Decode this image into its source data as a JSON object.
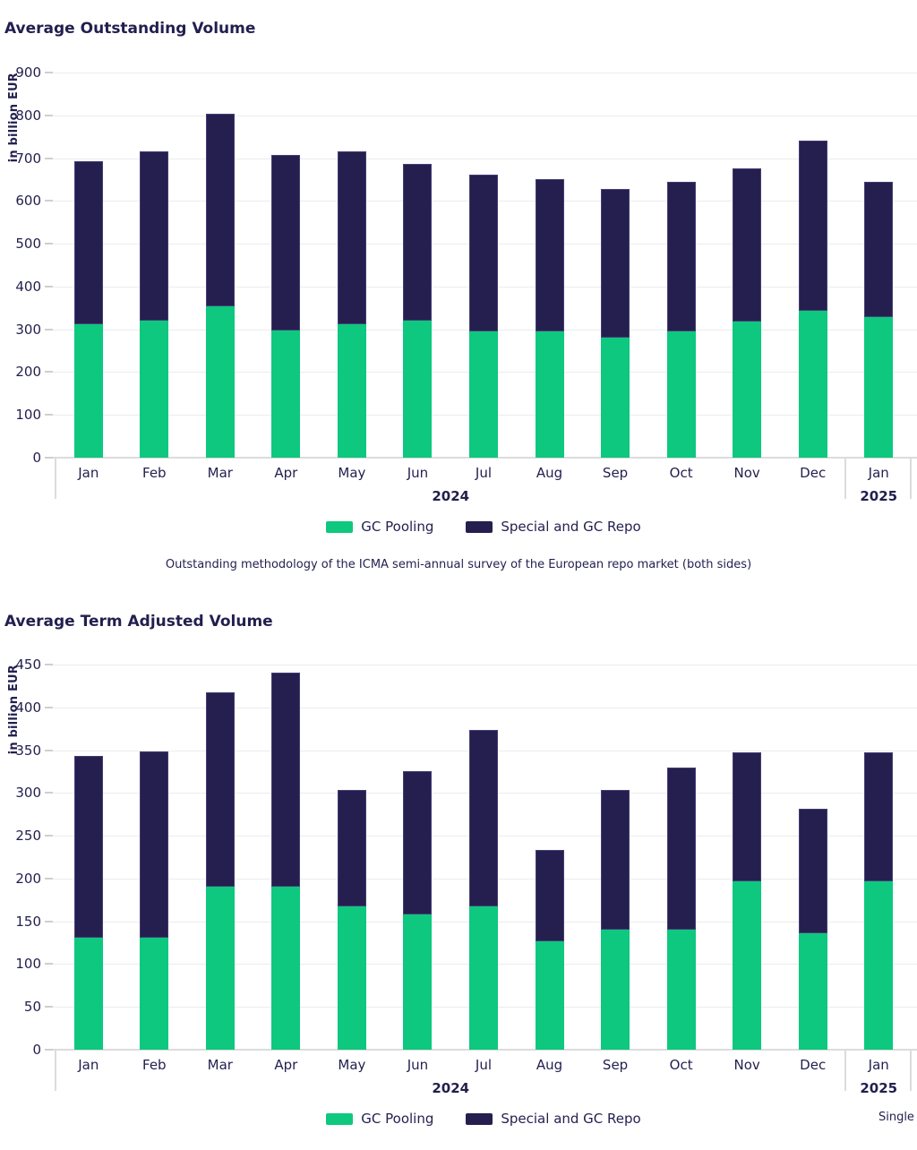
{
  "colors": {
    "gc_pooling": "#0dc87e",
    "special_gc_repo": "#241f4e",
    "gridline": "#ececec",
    "axis_line": "#dcdcdc",
    "text": "#221f4e"
  },
  "legend": {
    "items": [
      {
        "label": "GC Pooling",
        "color_key": "gc_pooling"
      },
      {
        "label": "Special and GC Repo",
        "color_key": "special_gc_repo"
      }
    ]
  },
  "caption": "Outstanding methodology of the ICMA semi-annual survey of the European repo market (both sides)",
  "single_counted": "Single counted",
  "chart_data": [
    {
      "type": "bar",
      "stacked": true,
      "title": "Average Outstanding Volume",
      "xlabel": "",
      "ylabel": "in billion EUR",
      "ylim": [
        0,
        900
      ],
      "ytick_step": 100,
      "grid": true,
      "legend_position": "bottom",
      "categories": [
        "Jan",
        "Feb",
        "Mar",
        "Apr",
        "May",
        "Jun",
        "Jul",
        "Aug",
        "Sep",
        "Oct",
        "Nov",
        "Dec",
        "Jan"
      ],
      "year_groups": [
        {
          "label": "2024",
          "months": 12
        },
        {
          "label": "2025",
          "months": 1
        }
      ],
      "series": [
        {
          "name": "GC Pooling",
          "color_key": "gc_pooling",
          "values": [
            312,
            321,
            353,
            297,
            312,
            320,
            296,
            296,
            280,
            295,
            319,
            343,
            328
          ]
        },
        {
          "name": "Special and GC Repo",
          "color_key": "special_gc_repo",
          "values": [
            381,
            395,
            451,
            411,
            404,
            366,
            365,
            356,
            348,
            350,
            358,
            397,
            317
          ]
        }
      ],
      "totals": [
        693,
        716,
        804,
        708,
        716,
        686,
        661,
        652,
        628,
        645,
        677,
        740,
        645
      ]
    },
    {
      "type": "bar",
      "stacked": true,
      "title": "Average Term Adjusted Volume",
      "xlabel": "",
      "ylabel": "in billion EUR",
      "ylim": [
        0,
        450
      ],
      "ytick_step": 50,
      "grid": true,
      "legend_position": "bottom",
      "categories": [
        "Jan",
        "Feb",
        "Mar",
        "Apr",
        "May",
        "Jun",
        "Jul",
        "Aug",
        "Sep",
        "Oct",
        "Nov",
        "Dec",
        "Jan"
      ],
      "year_groups": [
        {
          "label": "2024",
          "months": 12
        },
        {
          "label": "2025",
          "months": 1
        }
      ],
      "series": [
        {
          "name": "GC Pooling",
          "color_key": "gc_pooling",
          "values": [
            131,
            131,
            190,
            190,
            167,
            158,
            167,
            127,
            140,
            140,
            197,
            136,
            197
          ]
        },
        {
          "name": "Special and GC Repo",
          "color_key": "special_gc_repo",
          "values": [
            212,
            217,
            228,
            251,
            136,
            167,
            207,
            106,
            164,
            190,
            150,
            146,
            150
          ]
        }
      ],
      "totals": [
        343,
        348,
        418,
        441,
        303,
        325,
        374,
        233,
        304,
        330,
        347,
        282,
        347
      ]
    }
  ]
}
